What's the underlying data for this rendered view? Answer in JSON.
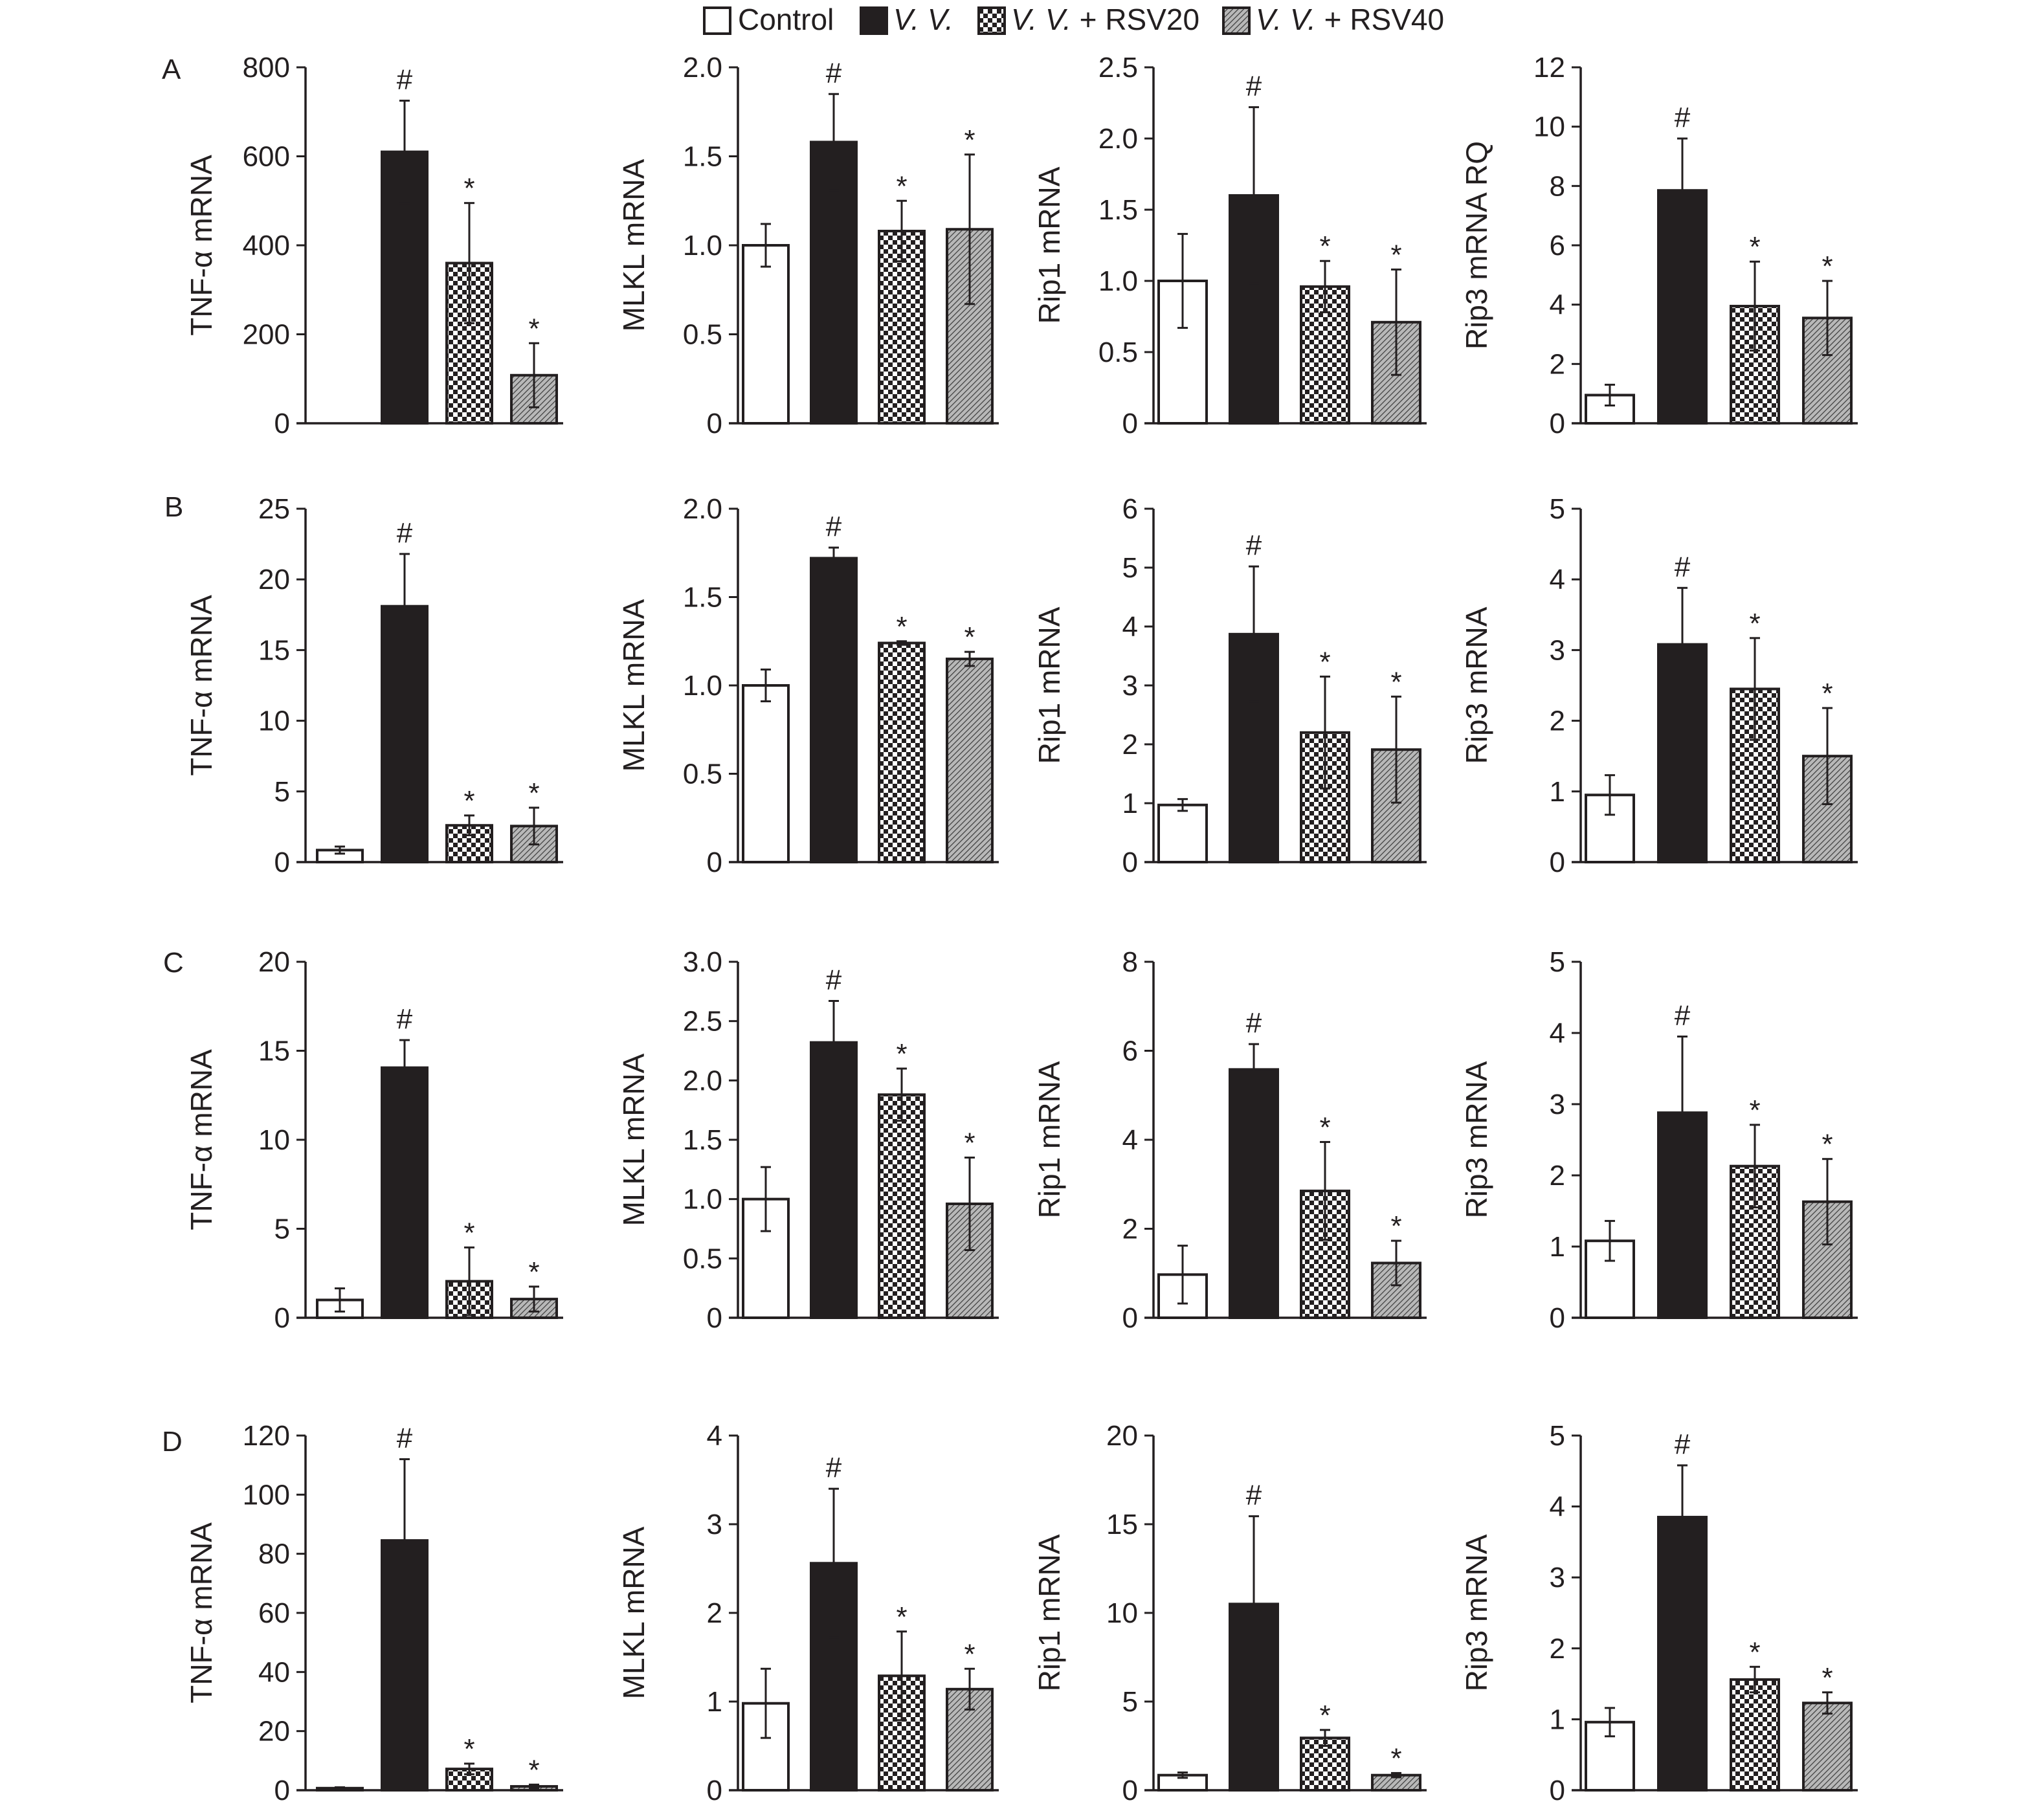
{
  "legend": {
    "entries": [
      {
        "label": "Control",
        "pattern": "white",
        "italic": false
      },
      {
        "label": "V. V.",
        "pattern": "black",
        "italic": true
      },
      {
        "label_italic": "V. V.",
        "label_rest": " + RSV20",
        "pattern": "checker"
      },
      {
        "label_italic": "V. V.",
        "label_rest": " + RSV40",
        "pattern": "hatch"
      }
    ]
  },
  "colors": {
    "ink": "#231f20",
    "control_fill": "#ffffff",
    "vv_fill": "#231f20"
  },
  "chart_data": [
    {
      "type": "bar",
      "row": "A",
      "ylabel": "TNF-α mRNA",
      "yticks": [
        "0",
        "200",
        "400",
        "600",
        "800"
      ],
      "ylim": [
        0,
        800
      ],
      "groups": [
        "Control",
        "V. V.",
        "V. V. + RSV20",
        "V. V. + RSV40"
      ],
      "values": [
        0,
        610,
        360,
        108
      ],
      "errors": [
        0,
        115,
        135,
        72
      ],
      "marks": [
        "",
        "#",
        "*",
        "*"
      ]
    },
    {
      "type": "bar",
      "row": "A",
      "ylabel": "MLKL mRNA",
      "yticks": [
        "0",
        "0.5",
        "1.0",
        "1.5",
        "2.0"
      ],
      "ylim": [
        0,
        2.0
      ],
      "groups": [
        "Control",
        "V. V.",
        "V. V. + RSV20",
        "V. V. + RSV40"
      ],
      "values": [
        1.0,
        1.58,
        1.08,
        1.09
      ],
      "errors": [
        0.12,
        0.27,
        0.17,
        0.42
      ],
      "marks": [
        "",
        "#",
        "*",
        "*"
      ]
    },
    {
      "type": "bar",
      "row": "A",
      "ylabel": "Rip1 mRNA",
      "yticks": [
        "0",
        "0.5",
        "1.0",
        "1.5",
        "2.0",
        "2.5"
      ],
      "ylim": [
        0,
        2.5
      ],
      "groups": [
        "Control",
        "V. V.",
        "V. V. + RSV20",
        "V. V. + RSV40"
      ],
      "values": [
        1.0,
        1.6,
        0.96,
        0.71
      ],
      "errors": [
        0.33,
        0.62,
        0.18,
        0.37
      ],
      "marks": [
        "",
        "#",
        "*",
        "*"
      ]
    },
    {
      "type": "bar",
      "row": "A",
      "ylabel": "Rip3 mRNA RQ",
      "yticks": [
        "0",
        "2",
        "4",
        "6",
        "8",
        "10",
        "12"
      ],
      "ylim": [
        0,
        12
      ],
      "groups": [
        "Control",
        "V. V.",
        "V. V. + RSV20",
        "V. V. + RSV40"
      ],
      "values": [
        0.95,
        7.85,
        3.95,
        3.55
      ],
      "errors": [
        0.35,
        1.75,
        1.5,
        1.25
      ],
      "marks": [
        "",
        "#",
        "*",
        "*"
      ]
    },
    {
      "type": "bar",
      "row": "B",
      "ylabel": "TNF-α mRNA",
      "yticks": [
        "0",
        "5",
        "10",
        "15",
        "20",
        "25"
      ],
      "ylim": [
        0,
        25
      ],
      "groups": [
        "Control",
        "V. V.",
        "V. V. + RSV20",
        "V. V. + RSV40"
      ],
      "values": [
        0.85,
        18.1,
        2.6,
        2.55
      ],
      "errors": [
        0.25,
        3.7,
        0.7,
        1.3
      ],
      "marks": [
        "",
        "#",
        "*",
        "*"
      ]
    },
    {
      "type": "bar",
      "row": "B",
      "ylabel": "MLKL mRNA",
      "yticks": [
        "0",
        "0.5",
        "1.0",
        "1.5",
        "2.0"
      ],
      "ylim": [
        0,
        2.0
      ],
      "groups": [
        "Control",
        "V. V.",
        "V. V. + RSV20",
        "V. V. + RSV40"
      ],
      "values": [
        1.0,
        1.72,
        1.24,
        1.15
      ],
      "errors": [
        0.09,
        0.06,
        0.01,
        0.04
      ],
      "marks": [
        "",
        "#",
        "*",
        "*"
      ]
    },
    {
      "type": "bar",
      "row": "B",
      "ylabel": "Rip1 mRNA",
      "yticks": [
        "0",
        "1",
        "2",
        "3",
        "4",
        "5",
        "6"
      ],
      "ylim": [
        0,
        6
      ],
      "groups": [
        "Control",
        "V. V.",
        "V. V. + RSV20",
        "V. V. + RSV40"
      ],
      "values": [
        0.97,
        3.87,
        2.2,
        1.91
      ],
      "errors": [
        0.1,
        1.15,
        0.95,
        0.9
      ],
      "marks": [
        "",
        "#",
        "*",
        "*"
      ]
    },
    {
      "type": "bar",
      "row": "B",
      "ylabel": "Rip3 mRNA",
      "yticks": [
        "0",
        "1",
        "2",
        "3",
        "4",
        "5"
      ],
      "ylim": [
        0,
        5
      ],
      "groups": [
        "Control",
        "V. V.",
        "V. V. + RSV20",
        "V. V. + RSV40"
      ],
      "values": [
        0.95,
        3.08,
        2.45,
        1.5
      ],
      "errors": [
        0.28,
        0.8,
        0.72,
        0.68
      ],
      "marks": [
        "",
        "#",
        "*",
        "*"
      ]
    },
    {
      "type": "bar",
      "row": "C",
      "ylabel": "TNF-α mRNA",
      "yticks": [
        "0",
        "5",
        "10",
        "15",
        "20"
      ],
      "ylim": [
        0,
        20
      ],
      "groups": [
        "Control",
        "V. V.",
        "V. V. + RSV20",
        "V. V. + RSV40"
      ],
      "values": [
        1.0,
        14.05,
        2.05,
        1.05
      ],
      "errors": [
        0.65,
        1.55,
        1.9,
        0.7
      ],
      "marks": [
        "",
        "#",
        "*",
        "*"
      ]
    },
    {
      "type": "bar",
      "row": "C",
      "ylabel": "MLKL mRNA",
      "yticks": [
        "0",
        "0.5",
        "1.0",
        "1.5",
        "2.0",
        "2.5",
        "3.0"
      ],
      "ylim": [
        0,
        3.0
      ],
      "groups": [
        "Control",
        "V. V.",
        "V. V. + RSV20",
        "V. V. + RSV40"
      ],
      "values": [
        1.0,
        2.32,
        1.88,
        0.96
      ],
      "errors": [
        0.27,
        0.35,
        0.22,
        0.39
      ],
      "marks": [
        "",
        "#",
        "*",
        "*"
      ]
    },
    {
      "type": "bar",
      "row": "C",
      "ylabel": "Rip1 mRNA",
      "yticks": [
        "0",
        "2",
        "4",
        "6",
        "8"
      ],
      "ylim": [
        0,
        8
      ],
      "groups": [
        "Control",
        "V. V.",
        "V. V. + RSV20",
        "V. V. + RSV40"
      ],
      "values": [
        0.97,
        5.58,
        2.85,
        1.23
      ],
      "errors": [
        0.65,
        0.57,
        1.1,
        0.5
      ],
      "marks": [
        "",
        "#",
        "*",
        "*"
      ]
    },
    {
      "type": "bar",
      "row": "C",
      "ylabel": "Rip3 mRNA",
      "yticks": [
        "0",
        "1",
        "2",
        "3",
        "4",
        "5"
      ],
      "ylim": [
        0,
        5
      ],
      "groups": [
        "Control",
        "V. V.",
        "V. V. + RSV20",
        "V. V. + RSV40"
      ],
      "values": [
        1.08,
        2.88,
        2.13,
        1.63
      ],
      "errors": [
        0.28,
        1.07,
        0.58,
        0.6
      ],
      "marks": [
        "",
        "#",
        "*",
        "*"
      ]
    },
    {
      "type": "bar",
      "row": "D",
      "ylabel": "TNF-α mRNA",
      "yticks": [
        "0",
        "20",
        "40",
        "60",
        "80",
        "100",
        "120"
      ],
      "ylim": [
        0,
        120
      ],
      "groups": [
        "Control",
        "V. V.",
        "V. V. + RSV20",
        "V. V. + RSV40"
      ],
      "values": [
        0.7,
        84.5,
        7.2,
        1.3
      ],
      "errors": [
        0.3,
        27.5,
        1.8,
        0.6
      ],
      "marks": [
        "",
        "#",
        "*",
        "*"
      ]
    },
    {
      "type": "bar",
      "row": "D",
      "ylabel": "MLKL mRNA",
      "yticks": [
        "0",
        "1",
        "2",
        "3",
        "4"
      ],
      "ylim": [
        0,
        4
      ],
      "groups": [
        "Control",
        "V. V.",
        "V. V. + RSV20",
        "V. V. + RSV40"
      ],
      "values": [
        0.98,
        2.56,
        1.29,
        1.14
      ],
      "errors": [
        0.39,
        0.84,
        0.5,
        0.23
      ],
      "marks": [
        "",
        "#",
        "*",
        "*"
      ]
    },
    {
      "type": "bar",
      "row": "D",
      "ylabel": "Rip1 mRNA",
      "yticks": [
        "0",
        "5",
        "10",
        "15",
        "20"
      ],
      "ylim": [
        0,
        20
      ],
      "groups": [
        "Control",
        "V. V.",
        "V. V. + RSV20",
        "V. V. + RSV40"
      ],
      "values": [
        0.85,
        10.5,
        2.95,
        0.85
      ],
      "errors": [
        0.15,
        4.95,
        0.45,
        0.12
      ],
      "marks": [
        "",
        "#",
        "*",
        "*"
      ]
    },
    {
      "type": "bar",
      "row": "D",
      "ylabel": "Rip3 mRNA",
      "yticks": [
        "0",
        "1",
        "2",
        "3",
        "4",
        "5"
      ],
      "ylim": [
        0,
        5
      ],
      "groups": [
        "Control",
        "V. V.",
        "V. V. + RSV20",
        "V. V. + RSV40"
      ],
      "values": [
        0.96,
        3.85,
        1.56,
        1.23
      ],
      "errors": [
        0.2,
        0.73,
        0.18,
        0.15
      ],
      "marks": [
        "",
        "#",
        "*",
        "*"
      ]
    }
  ]
}
